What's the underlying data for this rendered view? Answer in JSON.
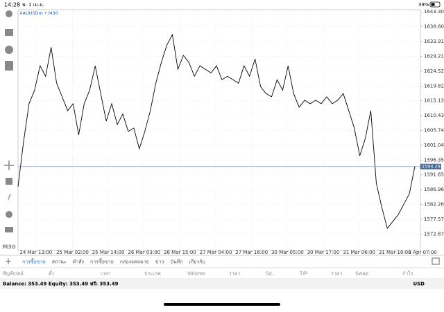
{
  "status_bar": {
    "time": "14:28",
    "date": "พ. 1 เม.ย.",
    "battery": "39%"
  },
  "symbol_label": "XAUUSDm • M30",
  "timeframe_button": "M30",
  "chart_data": {
    "type": "line",
    "color": "#000000",
    "grid": true,
    "values": [
      1587.9,
      1602.1,
      1614.2,
      1618.5,
      1626.2,
      1622.9,
      1632.1,
      1620.7,
      1616.4,
      1612.0,
      1614.2,
      1604.3,
      1614.2,
      1618.5,
      1626.2,
      1617.4,
      1608.7,
      1614.2,
      1607.6,
      1610.9,
      1605.4,
      1606.5,
      1599.9,
      1605.4,
      1612.0,
      1620.7,
      1627.3,
      1632.8,
      1636.1,
      1625.1,
      1629.5,
      1627.3,
      1622.9,
      1626.2,
      1625.1,
      1624.0,
      1626.2,
      1621.8,
      1622.9,
      1621.8,
      1620.7,
      1626.2,
      1622.9,
      1628.4,
      1619.6,
      1617.4,
      1616.4,
      1621.8,
      1618.5,
      1626.2,
      1617.4,
      1613.1,
      1615.3,
      1614.2,
      1615.3,
      1614.2,
      1616.4,
      1614.2,
      1615.3,
      1617.4,
      1612.0,
      1606.5,
      1597.7,
      1603.2,
      1612.0,
      1589.0,
      1581.3,
      1574.7,
      1576.9,
      1579.1,
      1582.4,
      1585.7,
      1594.4
    ],
    "current_price": 1594.291,
    "xlim": [
      0,
      73
    ],
    "xticks": [
      {
        "value": 3.25,
        "label": "24 Mar 13:00"
      },
      {
        "value": 9.875,
        "label": "25 Mar 02:00"
      },
      {
        "value": 16.375,
        "label": "25 Mar 14:00"
      },
      {
        "value": 22.875,
        "label": "26 Mar 03:00"
      },
      {
        "value": 29.375,
        "label": "26 Mar 15:00"
      },
      {
        "value": 35.875,
        "label": "27 Mar 04:00"
      },
      {
        "value": 42.375,
        "label": "27 Mar 16:00"
      },
      {
        "value": 48.875,
        "label": "30 Mar 05:00"
      },
      {
        "value": 55.375,
        "label": "30 Mar 17:00"
      },
      {
        "value": 61.875,
        "label": "31 Mar 06:00"
      },
      {
        "value": 68.375,
        "label": "31 Mar 18:00"
      },
      {
        "value": 73.4,
        "label": "1 Apr 07:00"
      }
    ],
    "ylim": [
      1567.7,
      1644.0
    ],
    "yticks": [
      {
        "value": 1643.3,
        "label": "1643.300"
      },
      {
        "value": 1638.605,
        "label": "1638.605"
      },
      {
        "value": 1633.91,
        "label": "1633.910"
      },
      {
        "value": 1629.215,
        "label": "1629.215"
      },
      {
        "value": 1624.52,
        "label": "1624.520"
      },
      {
        "value": 1619.825,
        "label": "1619.825"
      },
      {
        "value": 1615.13,
        "label": "1615.130"
      },
      {
        "value": 1610.435,
        "label": "1610.435"
      },
      {
        "value": 1605.74,
        "label": "1605.740"
      },
      {
        "value": 1601.045,
        "label": "1601.045"
      },
      {
        "value": 1596.35,
        "label": "1596.350"
      },
      {
        "value": 1591.655,
        "label": "1591.655"
      },
      {
        "value": 1586.96,
        "label": "1586.960"
      },
      {
        "value": 1582.265,
        "label": "1582.265"
      },
      {
        "value": 1577.57,
        "label": "1577.570"
      },
      {
        "value": 1572.875,
        "label": "1572.875"
      }
    ]
  },
  "tabs": [
    "การซื้อขาย",
    "สถานะ",
    "คำสั่ง",
    "การซื้อขาย",
    "กล่องจดหมาย",
    "ข่าว",
    "บันทึก",
    "เกี่ยวกับ"
  ],
  "columns": [
    "สัญลักษณ์",
    "ตั๋ว",
    "เวลา",
    "ประเภท",
    "Volume",
    "ราคา",
    "S/L",
    "T/P",
    "ราคา",
    "Swap",
    "กำไร"
  ],
  "balance": "Balance: 353.49 Equity: 353.49 ฟรี: 353.49",
  "currency": "USD"
}
